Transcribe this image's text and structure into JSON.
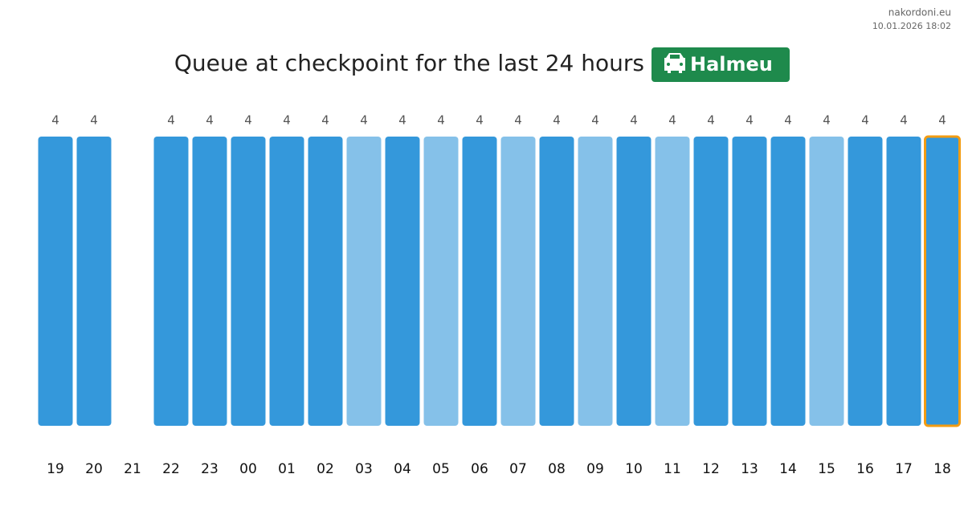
{
  "source": "nakordoni.eu",
  "timestamp": "10.01.2026 18:02",
  "chart_data": {
    "type": "bar",
    "title": "Queue at checkpoint for the last 24 hours",
    "checkpoint": "Halmeu",
    "categories": [
      "19",
      "20",
      "21",
      "22",
      "23",
      "00",
      "01",
      "02",
      "03",
      "04",
      "05",
      "06",
      "07",
      "08",
      "09",
      "10",
      "11",
      "12",
      "13",
      "14",
      "15",
      "16",
      "17",
      "18"
    ],
    "values": [
      4,
      4,
      null,
      4,
      4,
      4,
      4,
      4,
      4,
      4,
      4,
      4,
      4,
      4,
      4,
      4,
      4,
      4,
      4,
      4,
      4,
      4,
      4,
      4
    ],
    "colors": [
      "#3498db",
      "#3498db",
      null,
      "#3498db",
      "#3498db",
      "#3498db",
      "#3498db",
      "#3498db",
      "#85c1e9",
      "#3498db",
      "#85c1e9",
      "#3498db",
      "#85c1e9",
      "#3498db",
      "#85c1e9",
      "#3498db",
      "#85c1e9",
      "#3498db",
      "#3498db",
      "#3498db",
      "#85c1e9",
      "#3498db",
      "#3498db",
      "#3498db"
    ],
    "ylim": [
      0,
      4
    ],
    "highlight_index": 23,
    "highlight_color": "#f39c12",
    "badge_color": "#1e8a4c"
  }
}
